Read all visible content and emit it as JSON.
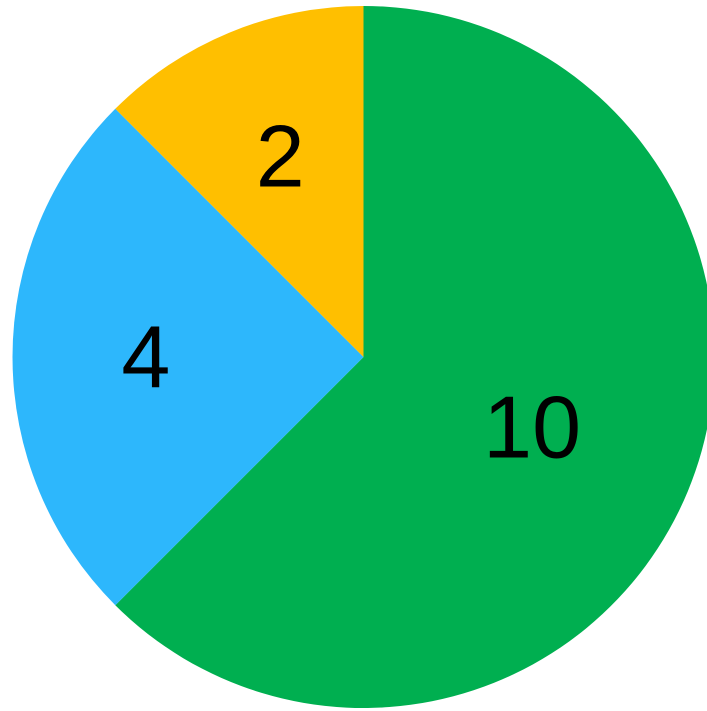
{
  "chart_data": {
    "type": "pie",
    "start_angle": "top",
    "direction": "clockwise",
    "slices": [
      {
        "value": 10,
        "label": "10",
        "color": "#00AF50"
      },
      {
        "value": 4,
        "label": "4",
        "color": "#2DB7FC"
      },
      {
        "value": 2,
        "label": "2",
        "color": "#FFBF00"
      }
    ]
  }
}
